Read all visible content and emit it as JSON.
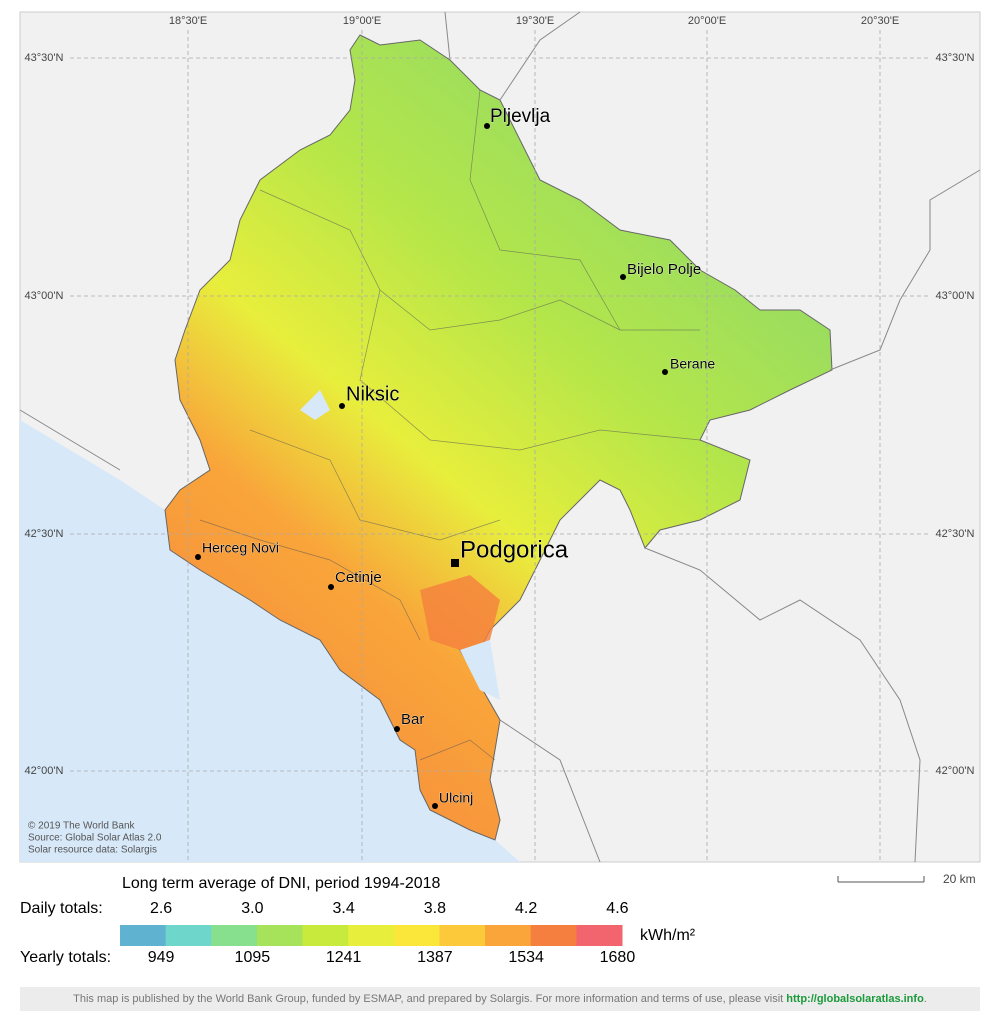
{
  "map": {
    "longitudes": [
      "18°30'E",
      "19°00'E",
      "19°30'E",
      "20°00'E",
      "20°30'E"
    ],
    "latitudes": [
      "43°30'N",
      "43°00'N",
      "42°30'N",
      "42°00'N"
    ],
    "cities": [
      "Pljevlja",
      "Bijelo Polje",
      "Berane",
      "Niksic",
      "Podgorica",
      "Herceg Novi",
      "Cetinje",
      "Bar",
      "Ulcinj"
    ],
    "credits": [
      "© 2019 The World Bank",
      "Source: Global Solar Atlas 2.0",
      "Solar resource data: Solargis"
    ],
    "scale": "20 km"
  },
  "legend": {
    "title": "Long term average of DNI, period 1994-2018",
    "daily_label": "Daily totals:",
    "daily": [
      "2.6",
      "3.0",
      "3.4",
      "3.8",
      "4.2",
      "4.6"
    ],
    "unit": "kWh/m²",
    "yearly_label": "Yearly totals:",
    "yearly": [
      "949",
      "1095",
      "1241",
      "1387",
      "1534",
      "1680"
    ],
    "colors": [
      "#5fb3d0",
      "#6fd6cc",
      "#86e08e",
      "#a6e35a",
      "#c8ea3c",
      "#e8ee3c",
      "#fbe63a",
      "#fbc93a",
      "#f9a53a",
      "#f57f3e",
      "#f2646e"
    ]
  },
  "footer": {
    "text": "This map is published by the World Bank Group, funded by ESMAP, and prepared by Solargis. For more information and terms of use, please visit",
    "link": "http://globalsolaratlas.info"
  }
}
